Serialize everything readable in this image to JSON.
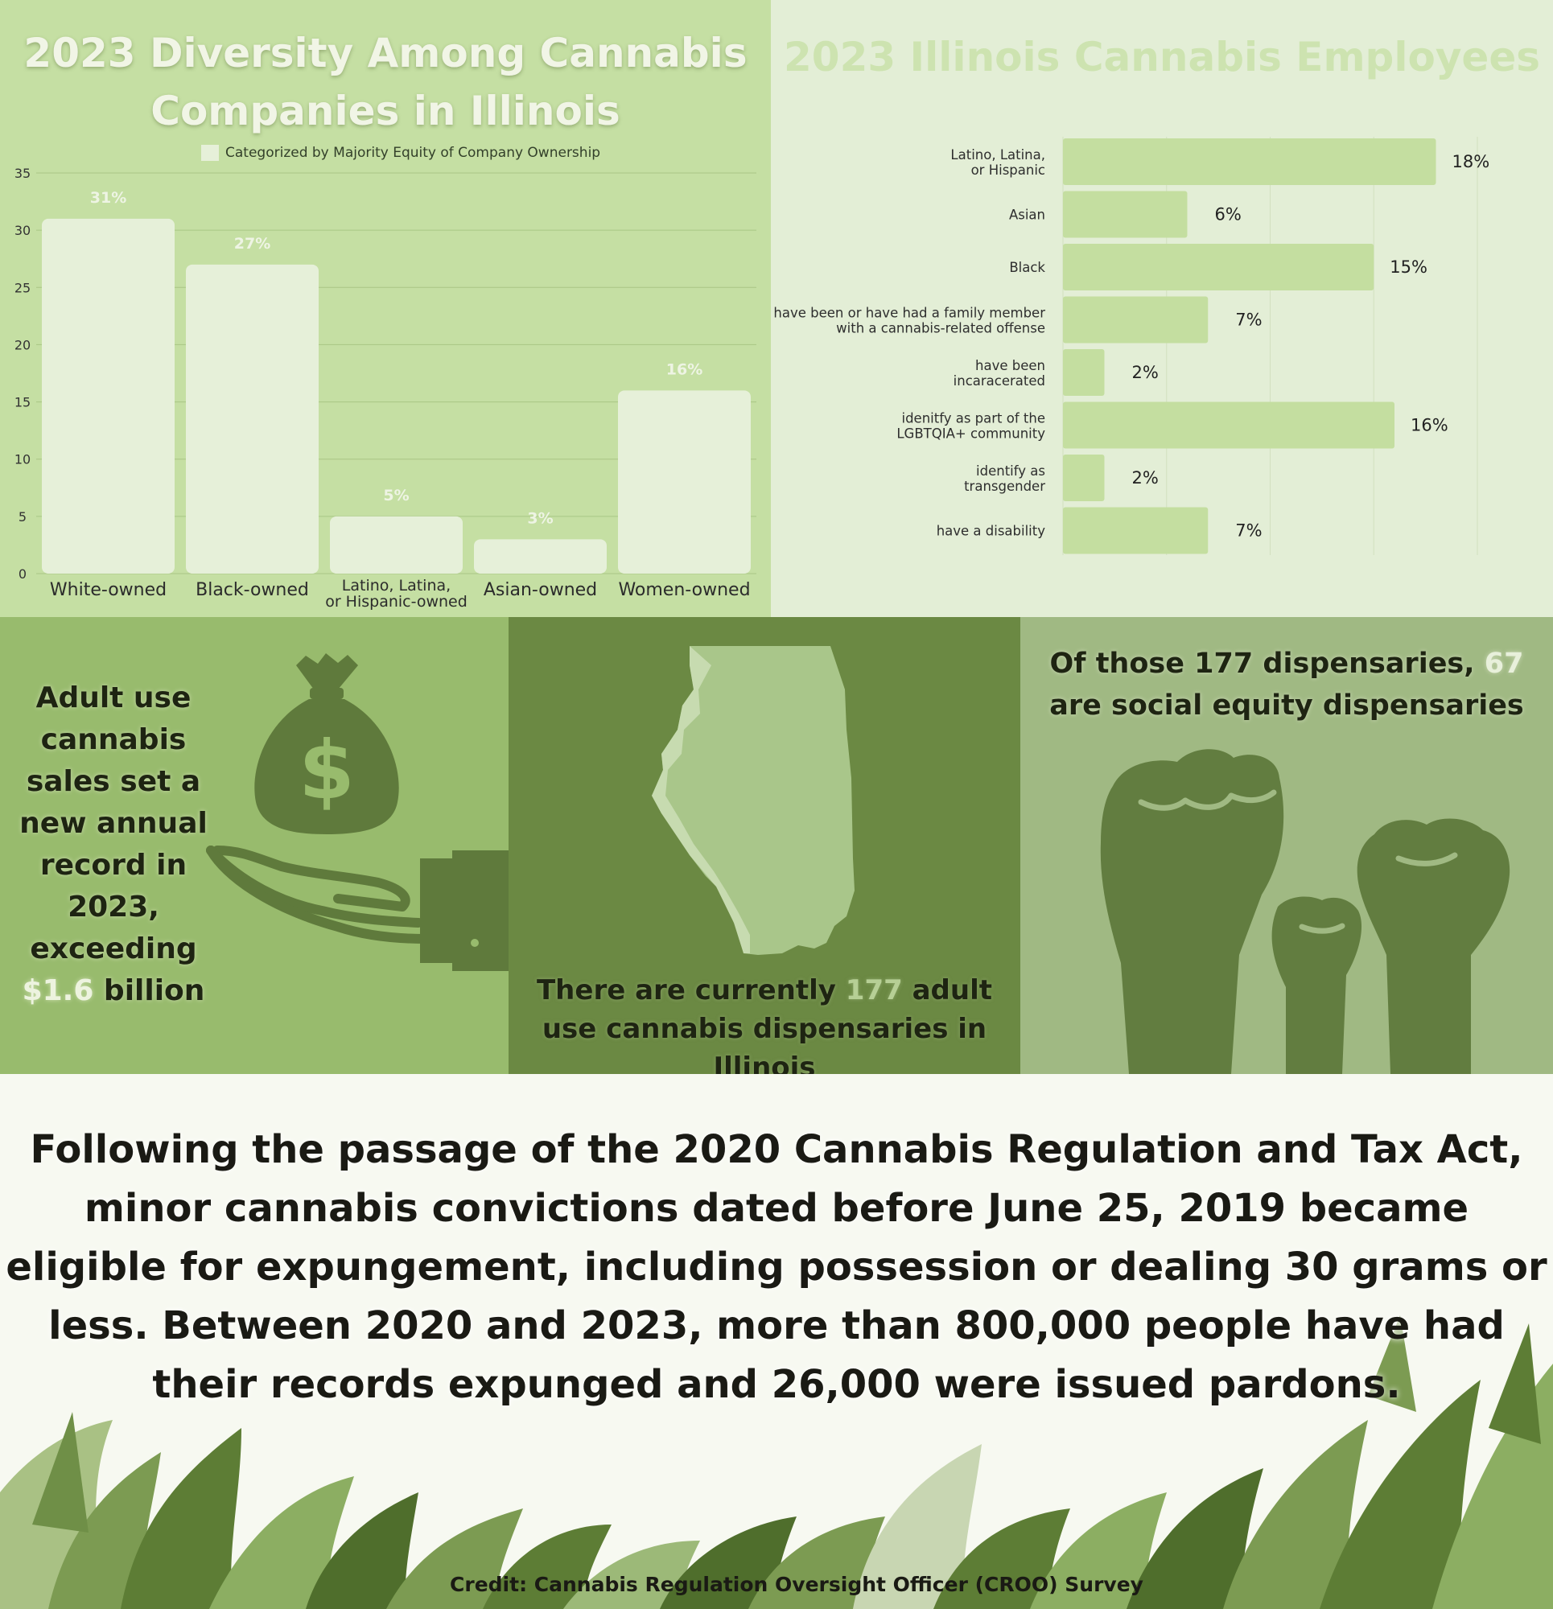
{
  "panel1": {
    "title_line1": "2023 Diversity Among Cannabis",
    "title_line2": "Companies in Illinois",
    "legend": "Categorized by Majority Equity of Company Ownership"
  },
  "panel2": {
    "title": "2023 Illinois Cannabis Employees"
  },
  "panel3": {
    "text_before": "Adult use cannabis sales set a new annual record in 2023, exceeding ",
    "highlight": "$1.6",
    "text_after": " billion"
  },
  "panel4": {
    "text_before": "There are currently ",
    "highlight": "177",
    "text_after": " adult use cannabis dispensaries in Illinois"
  },
  "panel5": {
    "text_before": "Of those 177 dispensaries, ",
    "highlight": "67",
    "text_after": " are social equity dispensaries"
  },
  "paragraph": "Following the passage of the 2020 Cannabis Regulation and Tax Act, minor cannabis convictions dated before June 25, 2019 became eligible for expungement, including possession or dealing 30 grams or less. Between 2020 and 2023, more than 800,000 people have had their records expunged and 26,000 were issued pardons.",
  "credit": "Credit: Cannabis Regulation Oversight Officer (CROO) Survey",
  "colors": {
    "panel1_bg": "#c5dfa3",
    "bar1": "#e6f0d9",
    "panel2_bg": "#e3eed6",
    "bar2": "#c4dea0",
    "panel3_bg": "#98bb6d",
    "panel4_bg": "#6b8943",
    "panel5_bg": "#a0b983",
    "icon_dark": "#5f7a3c"
  },
  "icons": [
    "money-bag-icon",
    "open-hand-icon",
    "illinois-map-icon",
    "raised-fist-icon"
  ],
  "chart_data": [
    {
      "type": "bar",
      "title": "2023 Diversity Among Cannabis Companies in Illinois",
      "legend": [
        "Categorized by Majority Equity of Company Ownership"
      ],
      "categories": [
        "White-owned",
        "Black-owned",
        "Latino, Latina,\nor Hispanic-owned",
        "Asian-owned",
        "Women-owned"
      ],
      "values": [
        31,
        27,
        5,
        3,
        16
      ],
      "value_labels": [
        "31%",
        "27%",
        "5%",
        "3%",
        "16%"
      ],
      "yticks": [
        "0",
        "5",
        "10",
        "15",
        "20",
        "25",
        "30",
        "35"
      ],
      "ylim": [
        0,
        35
      ],
      "grid": true
    },
    {
      "type": "bar",
      "orientation": "horizontal",
      "title": "2023 Illinois Cannabis Employees",
      "categories": [
        "Latino, Latina,\nor Hispanic",
        "Asian",
        "Black",
        "have been or have had a family member\nwith a cannabis-related offense",
        "have been\nincaracerated",
        "idenitfy as part of the\nLGBTQIA+ community",
        "identify as\ntransgender",
        "have a disability"
      ],
      "values": [
        18,
        6,
        15,
        7,
        2,
        16,
        2,
        7
      ],
      "value_labels": [
        "18%",
        "6%",
        "15%",
        "7%",
        "2%",
        "16%",
        "2%",
        "7%"
      ],
      "xlim": [
        0,
        20
      ],
      "grid": true
    }
  ]
}
